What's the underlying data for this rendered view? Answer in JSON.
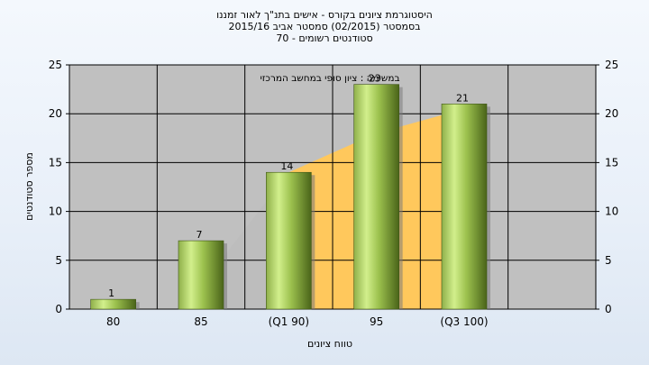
{
  "chart_data": {
    "type": "bar",
    "title_lines": [
      "היסטוגרמת ציונים בקורס - אישים בתנ\"ך לאור זמננו",
      "בסמסטר  (02/2015)  סמסטר אביב 2015/16",
      "סטודנטים רשומים - 70"
    ],
    "annotation": "במשימה : ציון סופי במחשב המרכזי",
    "xlabel": "טווח ציונים",
    "ylabel": "מספר סטודנטים",
    "categories": [
      "80",
      "85",
      "(Q1 90)",
      "95",
      "(Q3 100)"
    ],
    "values": [
      1,
      7,
      14,
      23,
      21
    ],
    "ylim": [
      0,
      25
    ],
    "yticks": [
      0,
      5,
      10,
      15,
      20,
      25
    ],
    "grid": true,
    "colors": {
      "plot_background": "#c0c0c0",
      "bar_light": "#c8e882",
      "bar_dark": "#4f6a1e",
      "area_gray": "#bdbdbd",
      "area_yellow": "#ffc85c"
    }
  }
}
